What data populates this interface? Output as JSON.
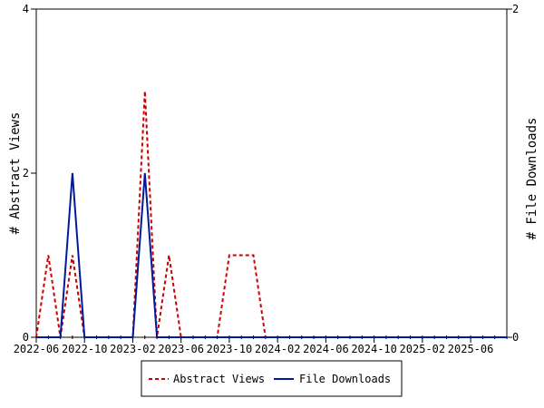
{
  "chart_data": {
    "type": "line",
    "title": "",
    "xlabel": "",
    "ylabel": "# Abstract Views",
    "y2label": "# File Downloads",
    "ylim": [
      0,
      4
    ],
    "y2lim": [
      0,
      2
    ],
    "yticks": [
      0,
      2,
      4
    ],
    "y2ticks": [
      0,
      2
    ],
    "xlim": [
      "2022-06",
      "2025-09"
    ],
    "xticks": [
      "2022-06",
      "2022-10",
      "2023-02",
      "2023-06",
      "2023-10",
      "2024-02",
      "2024-06",
      "2024-10",
      "2025-02",
      "2025-06"
    ],
    "x": [
      "2022-06",
      "2022-07",
      "2022-08",
      "2022-09",
      "2022-10",
      "2022-11",
      "2022-12",
      "2023-01",
      "2023-02",
      "2023-03",
      "2023-04",
      "2023-05",
      "2023-06",
      "2023-07",
      "2023-08",
      "2023-09",
      "2023-10",
      "2023-11",
      "2023-12",
      "2024-01",
      "2024-02",
      "2024-03",
      "2024-04",
      "2024-05",
      "2024-06",
      "2024-07",
      "2024-08",
      "2024-09",
      "2024-10",
      "2024-11",
      "2024-12",
      "2025-01",
      "2025-02",
      "2025-03",
      "2025-04",
      "2025-05",
      "2025-06",
      "2025-07",
      "2025-08",
      "2025-09"
    ],
    "grid": false,
    "legend_position": "bottom",
    "series": [
      {
        "name": "Abstract Views",
        "axis": "left",
        "color": "#cc0000",
        "style": "dashed",
        "values": [
          0,
          1,
          0,
          1,
          0,
          0,
          0,
          0,
          0,
          3,
          0,
          1,
          0,
          0,
          0,
          0,
          1,
          1,
          1,
          0,
          0,
          0,
          0,
          0,
          0,
          0,
          0,
          0,
          0,
          0,
          0,
          0,
          0,
          0,
          0,
          0,
          0,
          0,
          0,
          0
        ]
      },
      {
        "name": "File Downloads",
        "axis": "right",
        "color": "#001a99",
        "style": "solid",
        "values": [
          0,
          0,
          0,
          1,
          0,
          0,
          0,
          0,
          0,
          1,
          0,
          0,
          0,
          0,
          0,
          0,
          0,
          0,
          0,
          0,
          0,
          0,
          0,
          0,
          0,
          0,
          0,
          0,
          0,
          0,
          0,
          0,
          0,
          0,
          0,
          0,
          0,
          0,
          0,
          0
        ]
      }
    ]
  }
}
